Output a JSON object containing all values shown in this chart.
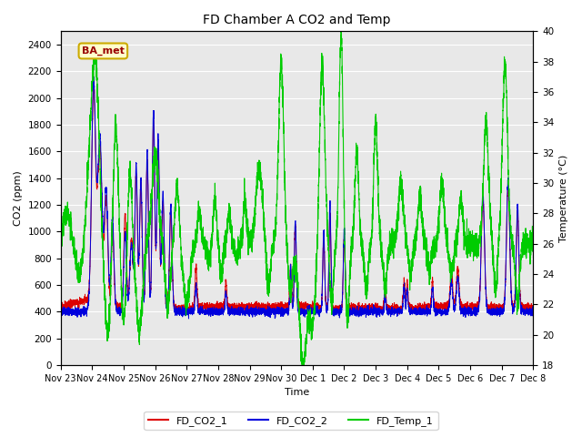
{
  "title": "FD Chamber A CO2 and Temp",
  "xlabel": "Time",
  "ylabel_left": "CO2 (ppm)",
  "ylabel_right": "Temperature (°C)",
  "co2_ylim": [
    0,
    2500
  ],
  "temp_ylim": [
    18,
    40
  ],
  "co2_yticks": [
    0,
    200,
    400,
    600,
    800,
    1000,
    1200,
    1400,
    1600,
    1800,
    2000,
    2200,
    2400
  ],
  "temp_yticks": [
    18,
    20,
    22,
    24,
    26,
    28,
    30,
    32,
    34,
    36,
    38,
    40
  ],
  "color_co2_1": "#dd0000",
  "color_co2_2": "#0000dd",
  "color_temp": "#00cc00",
  "legend_labels": [
    "FD_CO2_1",
    "FD_CO2_2",
    "FD_Temp_1"
  ],
  "annotation_text": "BA_met",
  "plot_bg_color": "#e8e8e8",
  "grid_color": "#ffffff",
  "figsize": [
    6.4,
    4.8
  ],
  "dpi": 100
}
